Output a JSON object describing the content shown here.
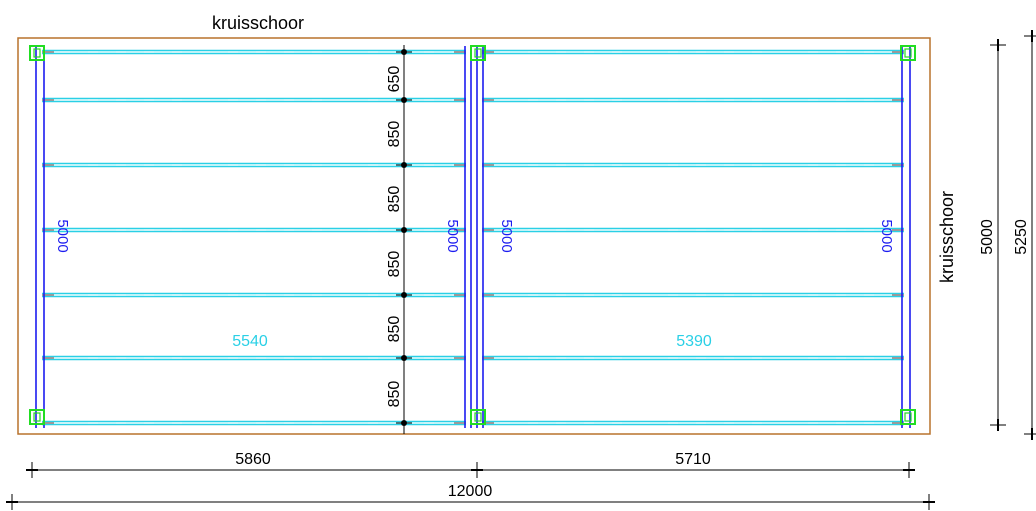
{
  "labels": {
    "top_bracing": "kruisschoor",
    "right_bracing": "kruisschoor"
  },
  "beam_lengths": {
    "left_field": "5540",
    "right_field": "5390"
  },
  "girder_lengths": [
    "5000",
    "5000",
    "5000",
    "5000"
  ],
  "spacings": [
    "650",
    "850",
    "850",
    "850",
    "850",
    "850"
  ],
  "dimensions": {
    "left_span": "5860",
    "right_span": "5710",
    "total_width": "12000",
    "inner_depth": "5000",
    "total_depth": "5250"
  },
  "colors": {
    "outline": "#b8722c",
    "beam": "#2ad0e6",
    "girder": "#1c1cf0",
    "column": "#22dd22",
    "dimension": "#000000"
  }
}
